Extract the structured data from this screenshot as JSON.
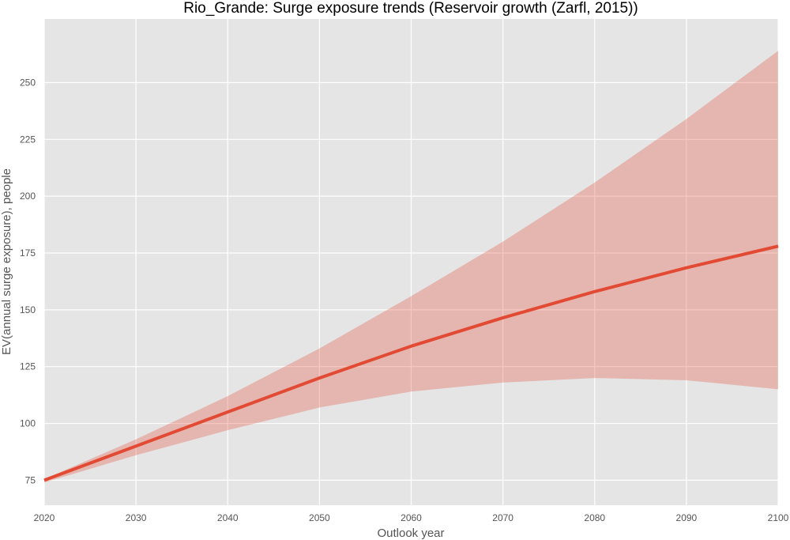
{
  "chart_data": {
    "type": "line",
    "title": "Rio_Grande: Surge exposure trends (Reservoir growth (Zarfl, 2015))",
    "xlabel": "Outlook year",
    "ylabel": "EV(annual surge exposure), people",
    "xlim": [
      2020,
      2100
    ],
    "ylim": [
      64,
      278
    ],
    "xticks": [
      2020,
      2030,
      2040,
      2050,
      2060,
      2070,
      2080,
      2090,
      2100
    ],
    "yticks": [
      75,
      100,
      125,
      150,
      175,
      200,
      225,
      250
    ],
    "grid": true,
    "background": "#e5e5e5",
    "series": [
      {
        "x": [
          2020,
          2030,
          2040,
          2050,
          2060,
          2070,
          2080,
          2090,
          2100
        ],
        "values": [
          75,
          90,
          105,
          120,
          134,
          146.5,
          158,
          168.5,
          178
        ],
        "color": "#e24a33"
      }
    ],
    "band": {
      "x": [
        2020,
        2030,
        2040,
        2050,
        2060,
        2070,
        2080,
        2090,
        2100
      ],
      "lower": [
        74,
        86,
        97,
        107,
        114,
        118,
        120,
        119,
        115
      ],
      "upper": [
        75.5,
        93,
        112,
        133,
        156,
        180,
        206,
        234,
        264
      ],
      "color": "#e24a33",
      "opacity": 0.3
    }
  }
}
